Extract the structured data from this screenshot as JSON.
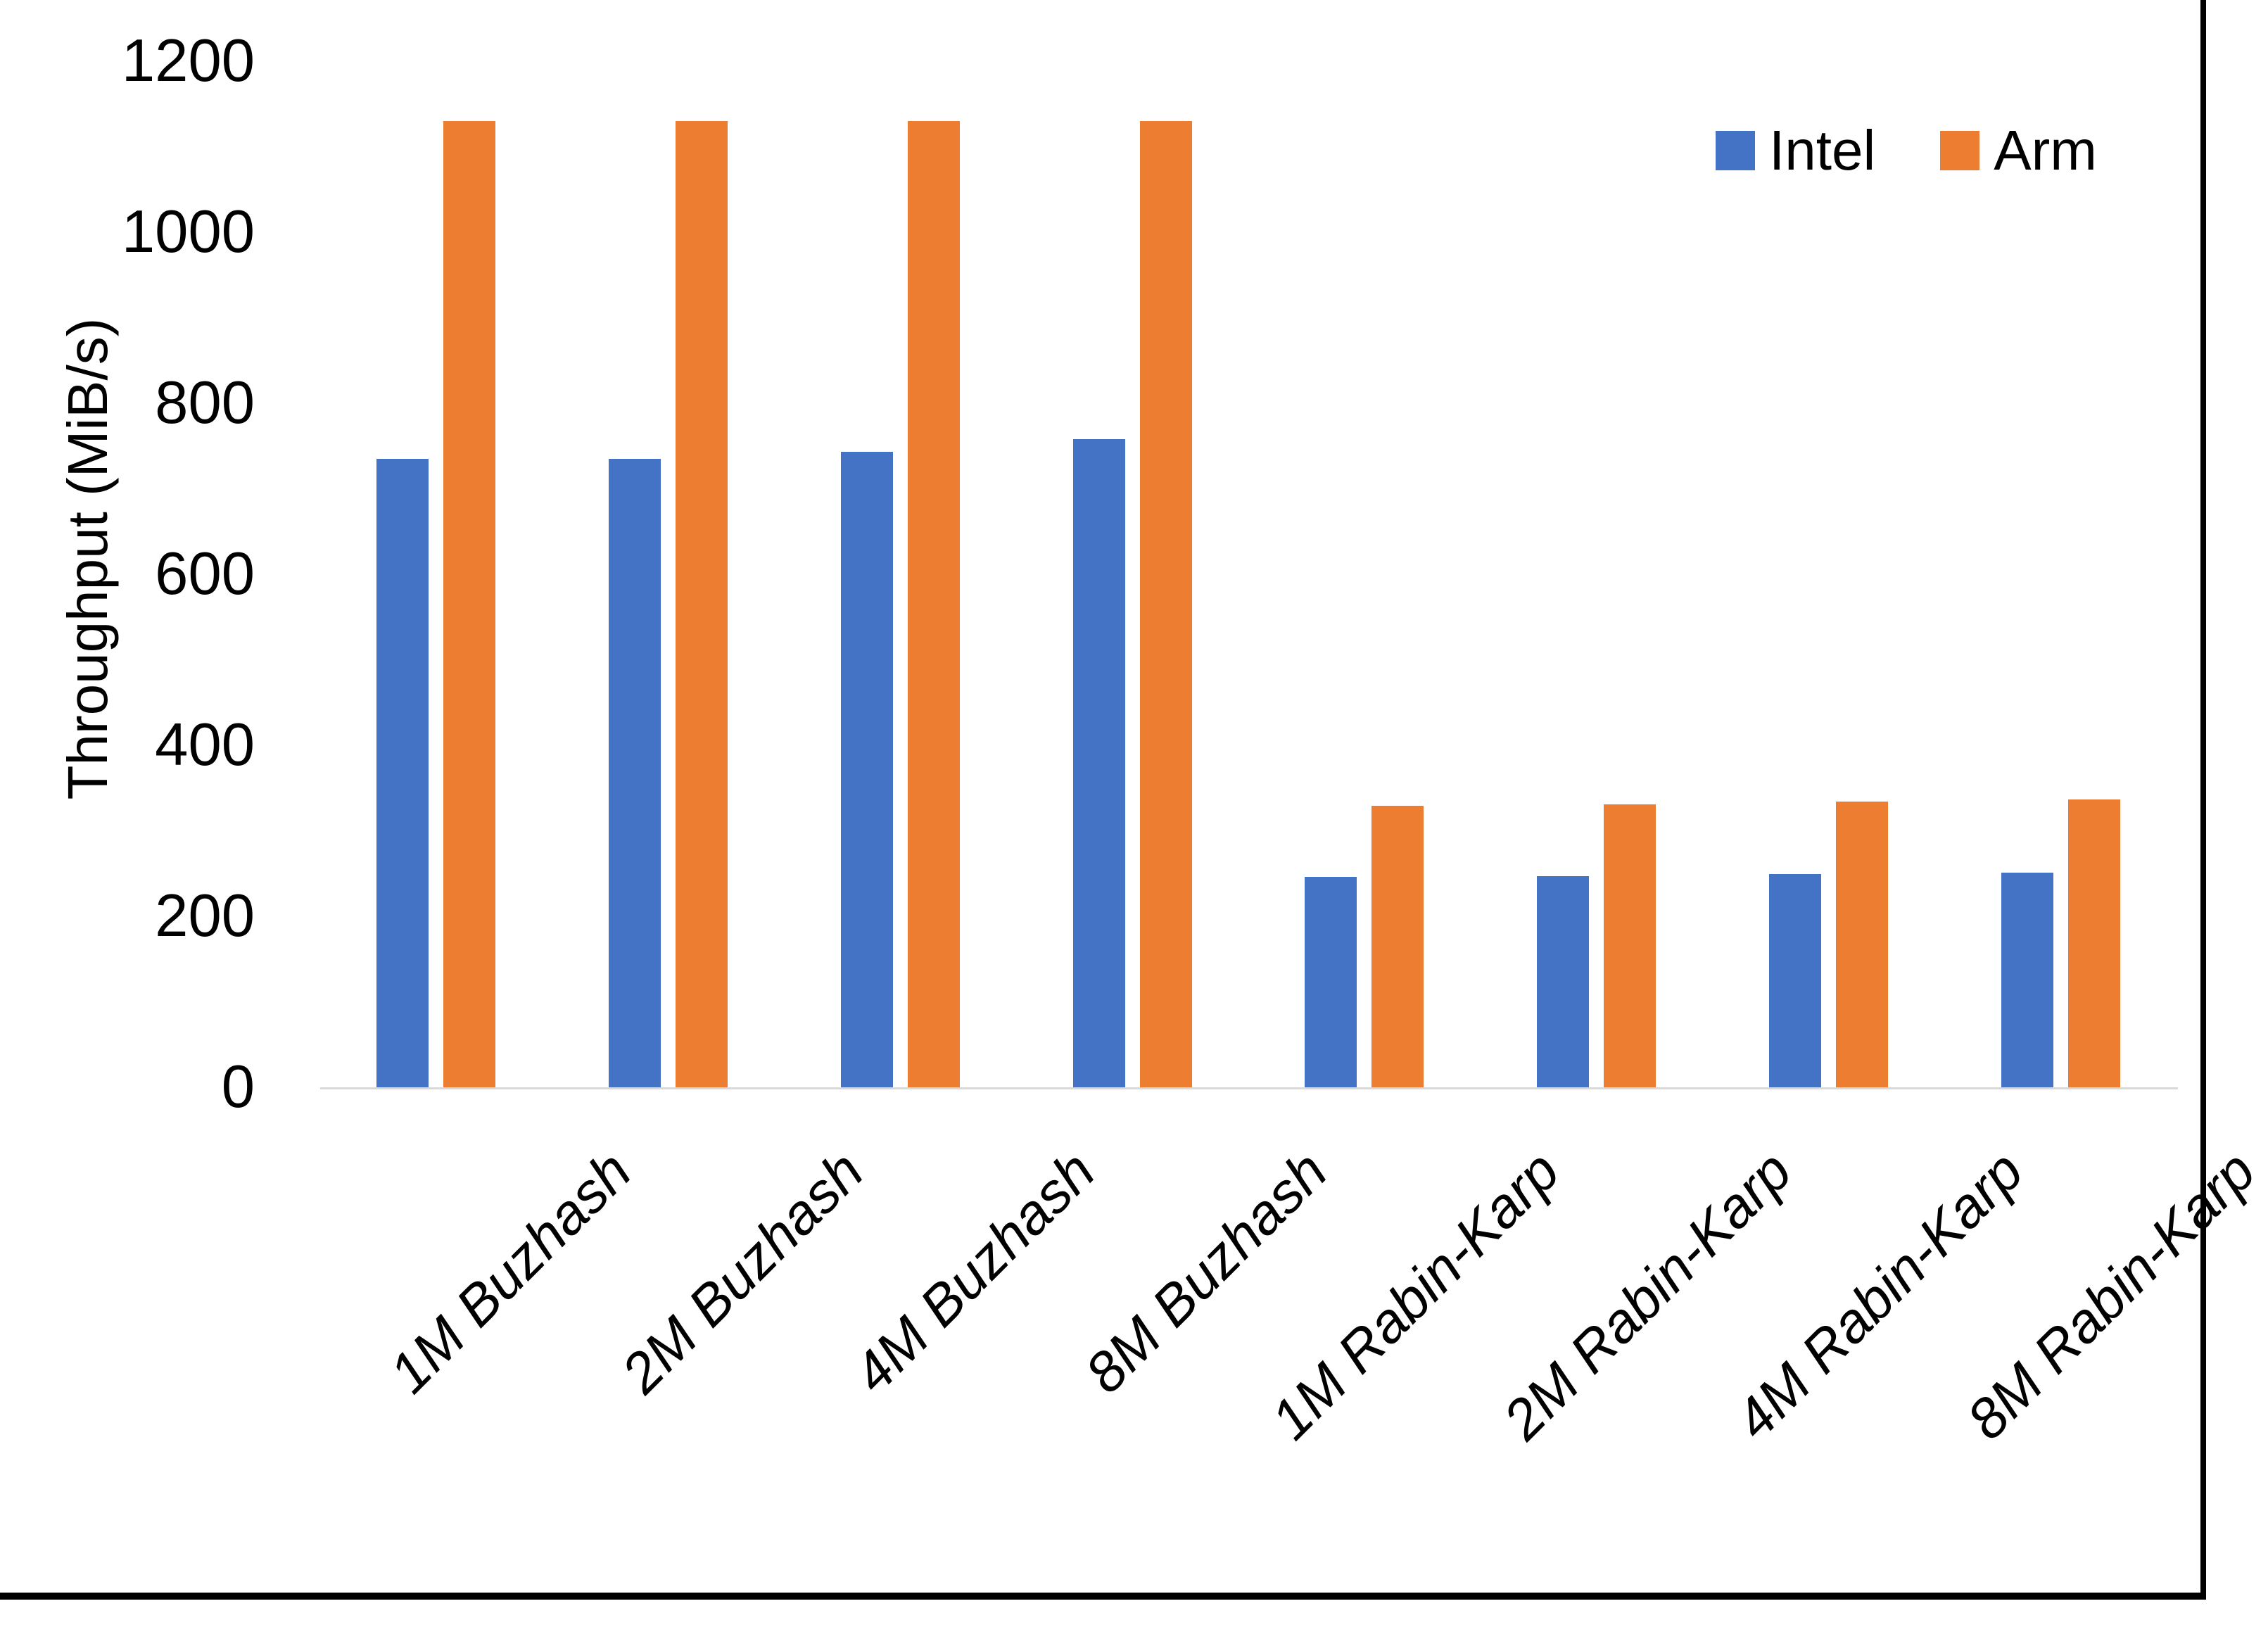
{
  "chart_data": {
    "type": "bar",
    "title": "",
    "xlabel": "",
    "ylabel": "Throughput (MiB/s)",
    "categories": [
      "1M Buzhash",
      "2M Buzhash",
      "4M Buzhash",
      "8M Buzhash",
      "1M Rabin-Karp",
      "2M Rabin-Karp",
      "4M Rabin-Karp",
      "8M Rabin-Karp"
    ],
    "series": [
      {
        "name": "Intel",
        "color": "#4472C4",
        "values": [
          735,
          735,
          743,
          758,
          246,
          247,
          249,
          251
        ]
      },
      {
        "name": "Arm",
        "color": "#ED7D31",
        "values": [
          1130,
          1130,
          1130,
          1130,
          329,
          331,
          334,
          337
        ]
      }
    ],
    "ylim": [
      0,
      1200
    ],
    "yticks": [
      0,
      200,
      400,
      600,
      800,
      1000,
      1200
    ],
    "grid": false,
    "legend_position": "top-right"
  },
  "colors": {
    "axis_line": "#D9D9D9",
    "text": "#000000",
    "frame": "#000000"
  }
}
